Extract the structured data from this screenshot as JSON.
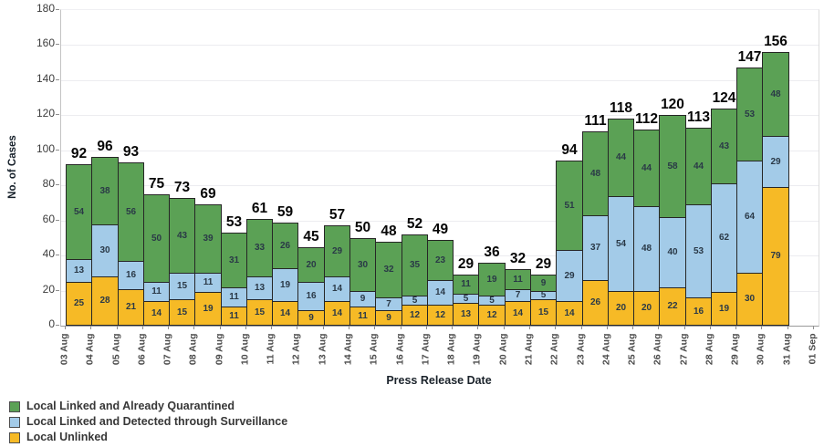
{
  "chart_data": {
    "type": "bar",
    "stacked": true,
    "xlabel": "Press Release Date",
    "ylabel": "No. of Cases",
    "ylim": [
      0,
      180
    ],
    "y_ticks": [
      0,
      20,
      40,
      60,
      80,
      100,
      120,
      140,
      160,
      180
    ],
    "grid": "horizontal",
    "legend_position": "bottom-left",
    "x_axis_labels": [
      "03 Aug",
      "04 Aug",
      "05 Aug",
      "06 Aug",
      "07 Aug",
      "08 Aug",
      "09 Aug",
      "10 Aug",
      "11 Aug",
      "12 Aug",
      "13 Aug",
      "14 Aug",
      "15 Aug",
      "16 Aug",
      "17 Aug",
      "18 Aug",
      "19 Aug",
      "20 Aug",
      "21 Aug",
      "22 Aug",
      "23 Aug",
      "24 Aug",
      "25 Aug",
      "26 Aug",
      "27 Aug",
      "28 Aug",
      "29 Aug",
      "30 Aug",
      "31 Aug",
      "01 Sep"
    ],
    "bars_span_between_ticks": true,
    "stack_order_bottom_to_top": [
      "Local Unlinked",
      "Local Linked and Detected through Surveillance",
      "Local Linked and Already Quarantined"
    ],
    "series": [
      {
        "name": "Local Linked and Already Quarantined",
        "color": "#5ba155",
        "values": [
          54,
          38,
          56,
          50,
          43,
          39,
          31,
          33,
          26,
          20,
          29,
          30,
          32,
          35,
          23,
          11,
          19,
          11,
          9,
          51,
          48,
          44,
          44,
          58,
          44,
          43,
          53,
          48
        ]
      },
      {
        "name": "Local Linked and Detected through Surveillance",
        "color": "#a3cbe8",
        "values": [
          13,
          30,
          16,
          11,
          15,
          11,
          11,
          13,
          19,
          16,
          14,
          9,
          7,
          5,
          14,
          5,
          5,
          7,
          5,
          29,
          37,
          54,
          48,
          40,
          53,
          62,
          64,
          29
        ]
      },
      {
        "name": "Local Unlinked",
        "color": "#f6ba26",
        "values": [
          25,
          28,
          21,
          14,
          15,
          19,
          11,
          15,
          14,
          9,
          14,
          11,
          9,
          12,
          12,
          13,
          12,
          14,
          15,
          14,
          26,
          20,
          20,
          22,
          16,
          19,
          30,
          79
        ]
      }
    ],
    "totals": [
      92,
      96,
      93,
      75,
      73,
      69,
      53,
      61,
      59,
      45,
      57,
      50,
      48,
      52,
      49,
      29,
      36,
      32,
      29,
      94,
      111,
      118,
      112,
      120,
      113,
      124,
      147,
      156
    ],
    "bar_border_color": "#262626"
  },
  "axes": {
    "x_title": "Press Release Date",
    "y_title": "No. of Cases"
  }
}
